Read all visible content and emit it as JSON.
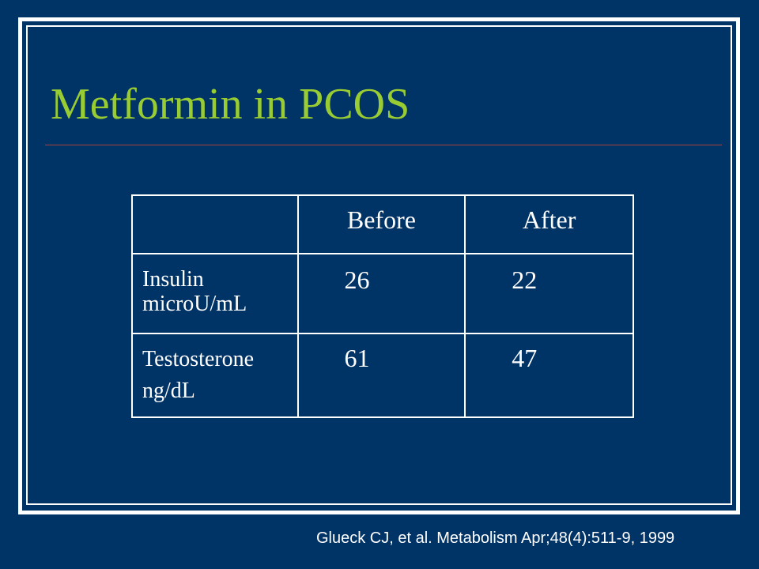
{
  "slide": {
    "title": "Metformin in PCOS",
    "citation": "Glueck CJ, et al. Metabolism Apr;48(4):511-9, 1999",
    "colors": {
      "background": "#003366",
      "title": "#99cc33",
      "rule": "#a8403b",
      "text": "#ffffff"
    }
  },
  "table": {
    "headers": [
      "",
      "Before",
      "After"
    ],
    "rows": [
      {
        "label_lines": [
          "Insulin",
          "microU/mL"
        ],
        "before": "26",
        "after": "22"
      },
      {
        "label_lines": [
          "Testosterone",
          "ng/dL"
        ],
        "before": "61",
        "after": "47"
      }
    ]
  }
}
